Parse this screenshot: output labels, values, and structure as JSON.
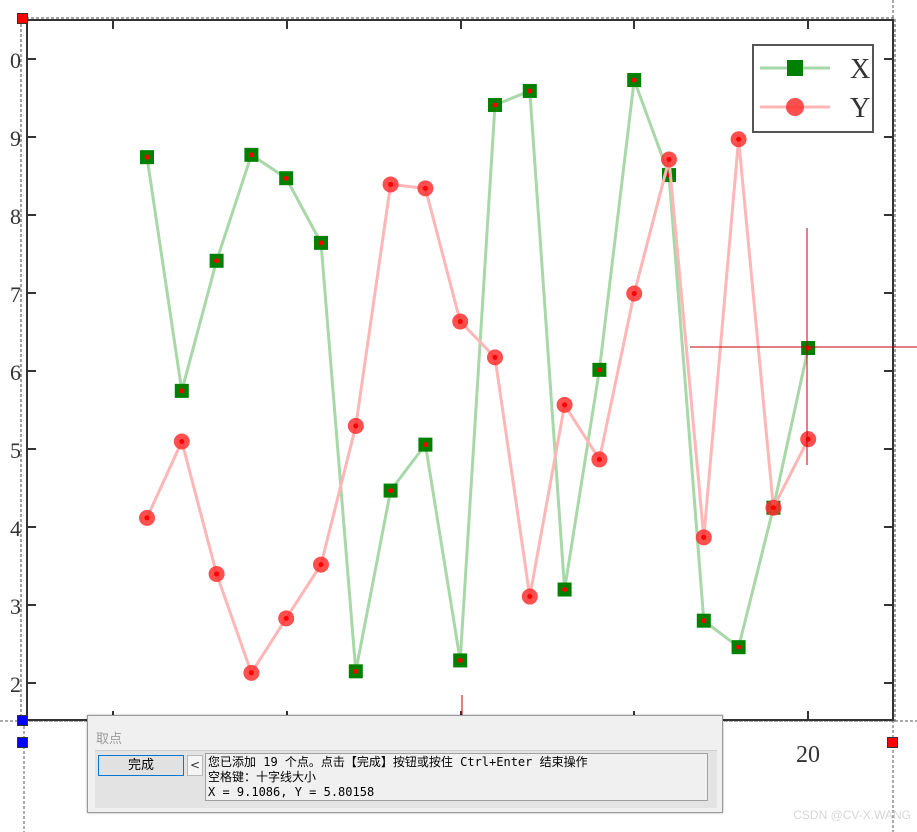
{
  "chart_data": {
    "type": "line",
    "x": [
      1,
      2,
      3,
      4,
      5,
      6,
      7,
      8,
      9,
      10,
      11,
      12,
      13,
      14,
      15,
      16,
      17,
      18,
      19,
      20
    ],
    "series": [
      {
        "name": "X",
        "color": "#008000",
        "marker": "square",
        "values": [
          8.75,
          5.75,
          7.42,
          8.78,
          8.48,
          7.65,
          2.15,
          4.47,
          5.06,
          2.29,
          9.42,
          9.6,
          3.2,
          6.02,
          9.74,
          8.52,
          2.8,
          2.46,
          4.25,
          6.3
        ]
      },
      {
        "name": "Y",
        "color": "#ff3030",
        "marker": "circle",
        "values": [
          4.12,
          5.1,
          3.4,
          2.13,
          2.83,
          3.52,
          5.3,
          8.4,
          8.35,
          6.64,
          6.18,
          3.11,
          5.57,
          4.87,
          7.0,
          8.72,
          3.87,
          8.98,
          4.25,
          5.13
        ]
      }
    ],
    "yticks": [
      "0",
      "9",
      "8",
      "7",
      "6",
      "5",
      "4",
      "3",
      "2"
    ],
    "xtick_labels": [
      "20"
    ],
    "ylim": [
      1.6,
      10.5
    ],
    "legend_position": "top-right",
    "grid": false
  },
  "crosshair": {
    "color": "#c00000"
  },
  "selection_handles": {
    "corner_color": "#ff0000",
    "anchor_color": "#0000ff"
  },
  "dialog": {
    "title": "取点",
    "done_button": "完成",
    "collapse_button": "<",
    "message_lines": [
      "您已添加 19 个点。点击【完成】按钮或按住 Ctrl+Enter 结束操作",
      "空格键：十字线大小",
      "X = 9.1086, Y = 5.80158"
    ]
  },
  "watermark": "CSDN @CV-X.WANG"
}
